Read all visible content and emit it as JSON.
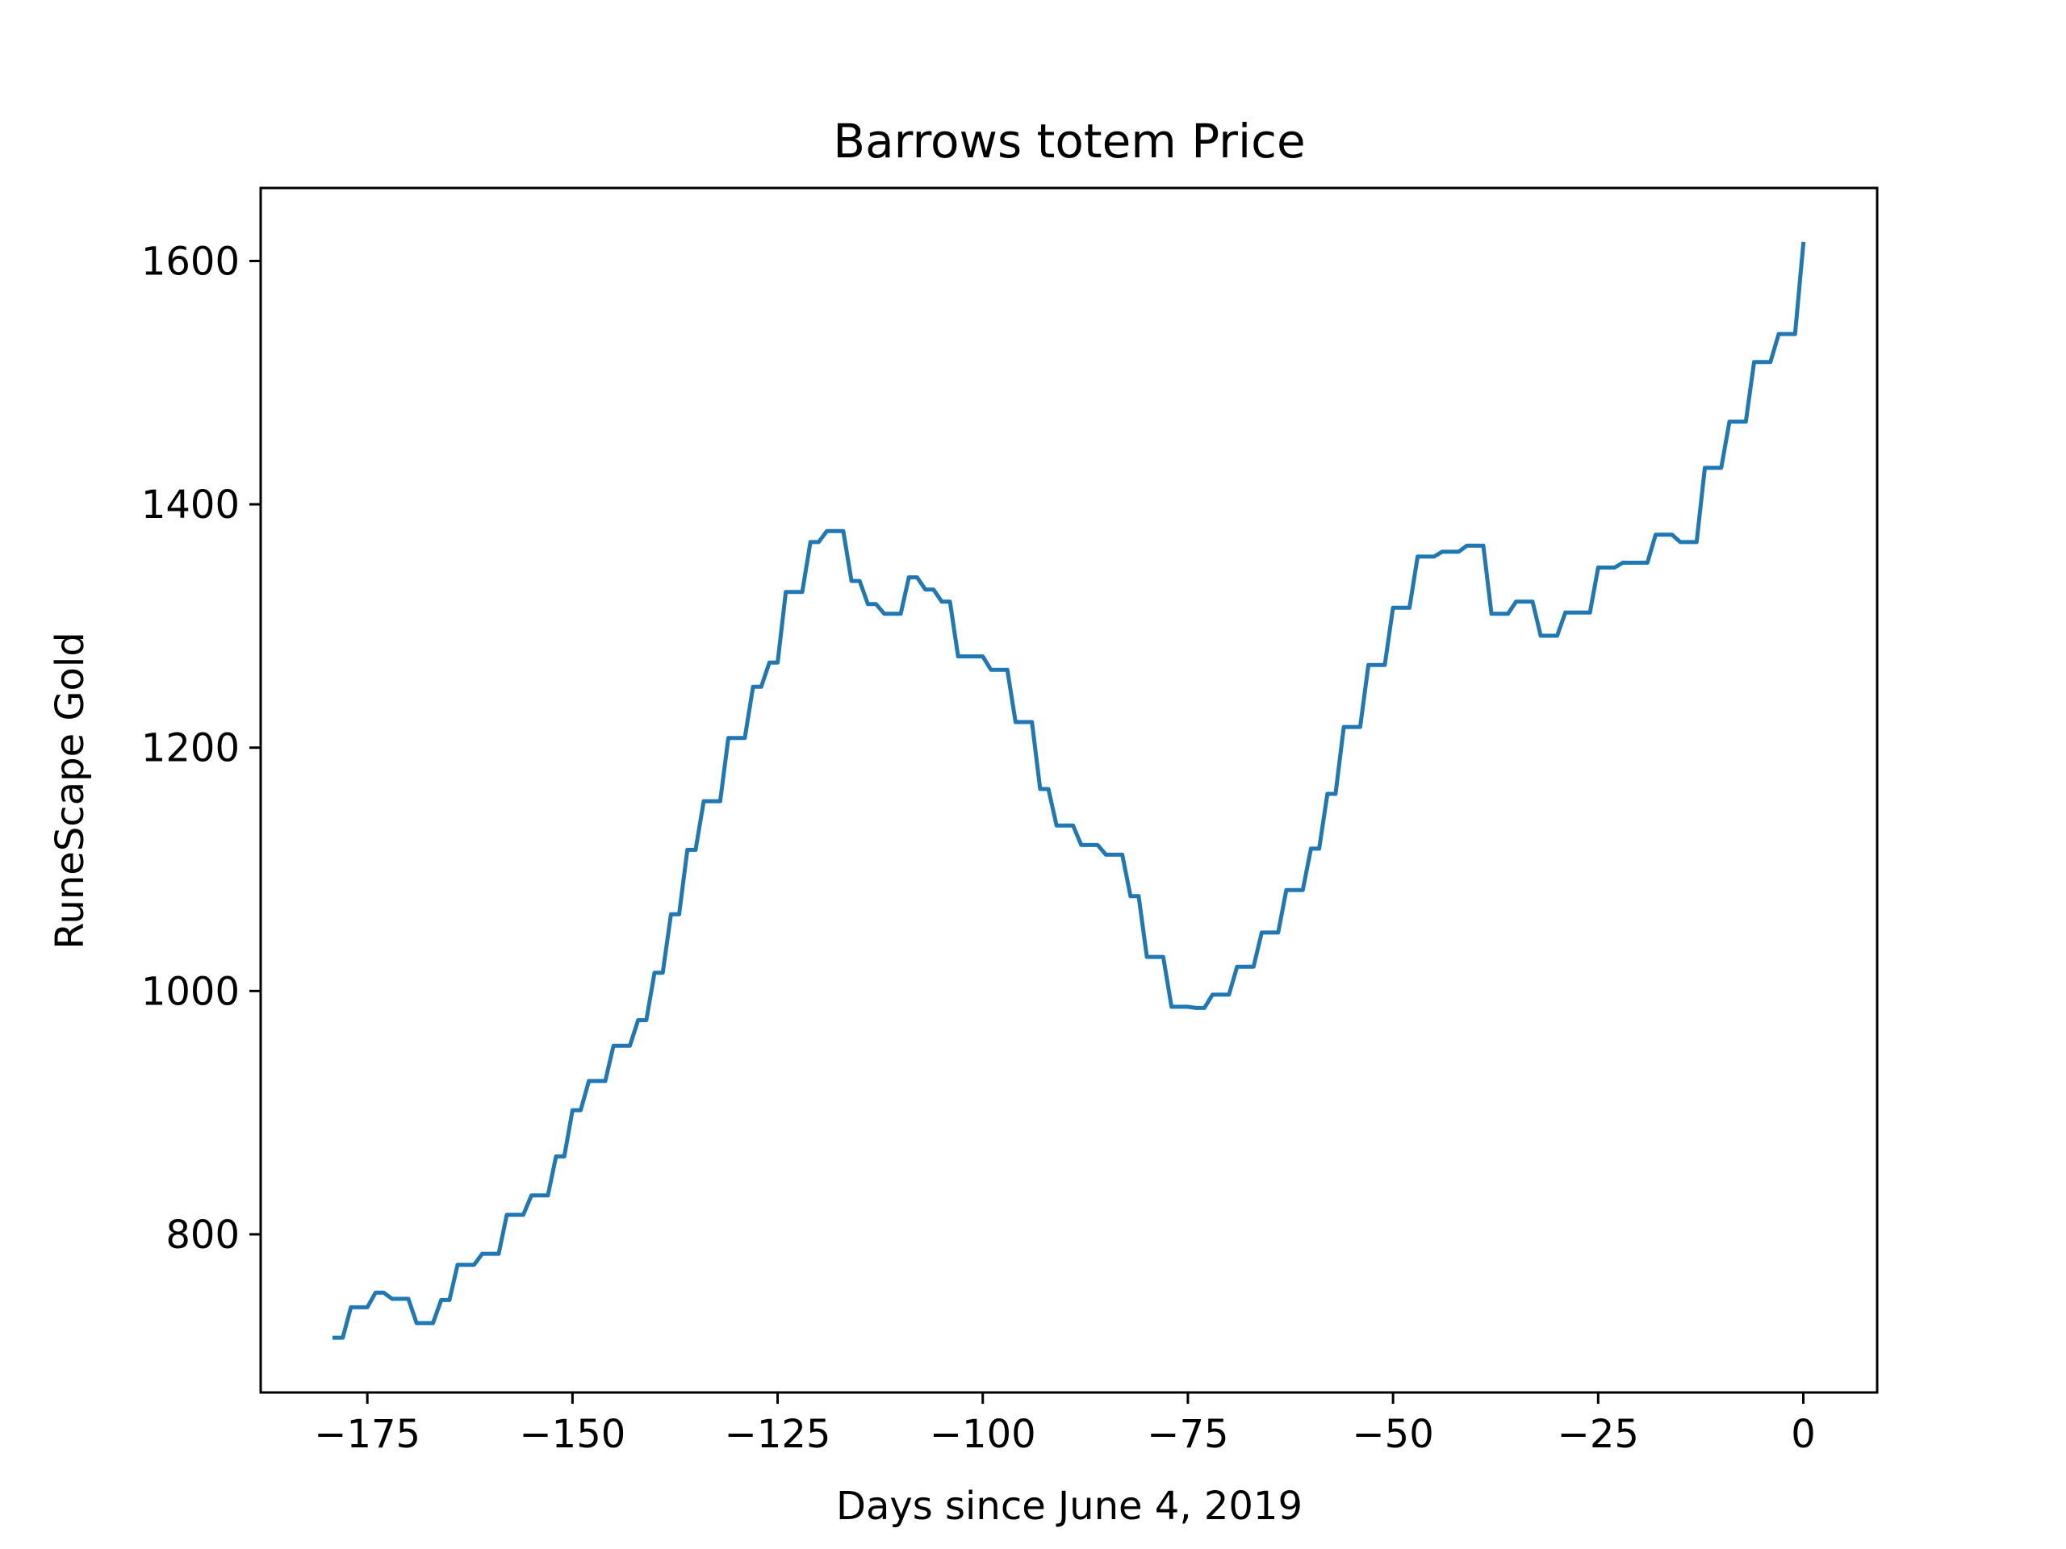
{
  "chart_data": {
    "type": "line",
    "title": "Barrows totem Price",
    "xlabel": "Days since June 4, 2019",
    "ylabel": "RuneScape Gold",
    "xlim": [
      -188,
      9
    ],
    "ylim": [
      670,
      1660
    ],
    "xticks": [
      -175,
      -150,
      -125,
      -100,
      -75,
      -50,
      -25,
      0
    ],
    "xtick_labels": [
      "−175",
      "−150",
      "−125",
      "−100",
      "−75",
      "−50",
      "−25",
      "0"
    ],
    "yticks": [
      800,
      1000,
      1200,
      1400,
      1600
    ],
    "ytick_labels": [
      "800",
      "1000",
      "1200",
      "1400",
      "1600"
    ],
    "grid": false,
    "color": "#1f77b4",
    "series": [
      {
        "x": [
          -179,
          -178,
          -177,
          -176,
          -175,
          -174,
          -173,
          -172,
          -171,
          -170,
          -169,
          -168,
          -167,
          -166,
          -165,
          -164,
          -163,
          -162,
          -161,
          -160,
          -159,
          -158,
          -157,
          -156,
          -155,
          -154,
          -153,
          -152,
          -151,
          -150,
          -149,
          -148,
          -147,
          -146,
          -145,
          -144,
          -143,
          -142,
          -141,
          -140,
          -139,
          -138,
          -137,
          -136,
          -135,
          -134,
          -133,
          -132,
          -131,
          -130,
          -129,
          -128,
          -127,
          -126,
          -125,
          -124,
          -123,
          -122,
          -121,
          -120,
          -119,
          -118,
          -117,
          -116,
          -115,
          -114,
          -113,
          -112,
          -111,
          -110,
          -109,
          -108,
          -107,
          -106,
          -105,
          -104,
          -103,
          -102,
          -101,
          -100,
          -99,
          -98,
          -97,
          -96,
          -95,
          -94,
          -93,
          -92,
          -91,
          -90,
          -89,
          -88,
          -87,
          -86,
          -85,
          -84,
          -83,
          -82,
          -81,
          -80,
          -79,
          -78,
          -77,
          -76,
          -75,
          -74,
          -73,
          -72,
          -71,
          -70,
          -69,
          -68,
          -67,
          -66,
          -65,
          -64,
          -63,
          -62,
          -61,
          -60,
          -59,
          -58,
          -57,
          -56,
          -55,
          -54,
          -53,
          -52,
          -51,
          -50,
          -49,
          -48,
          -47,
          -46,
          -45,
          -44,
          -43,
          -42,
          -41,
          -40,
          -39,
          -38,
          -37,
          -36,
          -35,
          -34,
          -33,
          -32,
          -31,
          -30,
          -29,
          -28,
          -27,
          -26,
          -25,
          -24,
          -23,
          -22,
          -21,
          -20,
          -19,
          -18,
          -17,
          -16,
          -15,
          -14,
          -13,
          -12,
          -11,
          -10,
          -9,
          -8,
          -7,
          -6,
          -5,
          -4,
          -3,
          -2,
          -1,
          0
        ],
        "y": [
          715,
          715,
          740,
          740,
          740,
          752,
          752,
          747,
          747,
          747,
          727,
          727,
          727,
          746,
          746,
          775,
          775,
          775,
          784,
          784,
          784,
          816,
          816,
          816,
          832,
          832,
          832,
          864,
          864,
          902,
          902,
          926,
          926,
          926,
          955,
          955,
          955,
          976,
          976,
          1015,
          1015,
          1063,
          1063,
          1116,
          1116,
          1156,
          1156,
          1156,
          1208,
          1208,
          1208,
          1250,
          1250,
          1270,
          1270,
          1328,
          1328,
          1328,
          1369,
          1369,
          1378,
          1378,
          1378,
          1337,
          1337,
          1318,
          1318,
          1310,
          1310,
          1310,
          1340,
          1340,
          1330,
          1330,
          1320,
          1320,
          1275,
          1275,
          1275,
          1275,
          1264,
          1264,
          1264,
          1221,
          1221,
          1221,
          1166,
          1166,
          1136,
          1136,
          1136,
          1120,
          1120,
          1120,
          1112,
          1112,
          1112,
          1078,
          1078,
          1028,
          1028,
          1028,
          987,
          987,
          987,
          986,
          986,
          997,
          997,
          997,
          1020,
          1020,
          1020,
          1048,
          1048,
          1048,
          1083,
          1083,
          1083,
          1117,
          1117,
          1162,
          1162,
          1217,
          1217,
          1217,
          1268,
          1268,
          1268,
          1315,
          1315,
          1315,
          1357,
          1357,
          1357,
          1361,
          1361,
          1361,
          1366,
          1366,
          1366,
          1310,
          1310,
          1310,
          1320,
          1320,
          1320,
          1292,
          1292,
          1292,
          1311,
          1311,
          1311,
          1311,
          1348,
          1348,
          1348,
          1352,
          1352,
          1352,
          1352,
          1375,
          1375,
          1375,
          1369,
          1369,
          1369,
          1430,
          1430,
          1430,
          1468,
          1468,
          1468,
          1517,
          1517,
          1517,
          1540,
          1540,
          1540,
          1614
        ]
      }
    ]
  }
}
